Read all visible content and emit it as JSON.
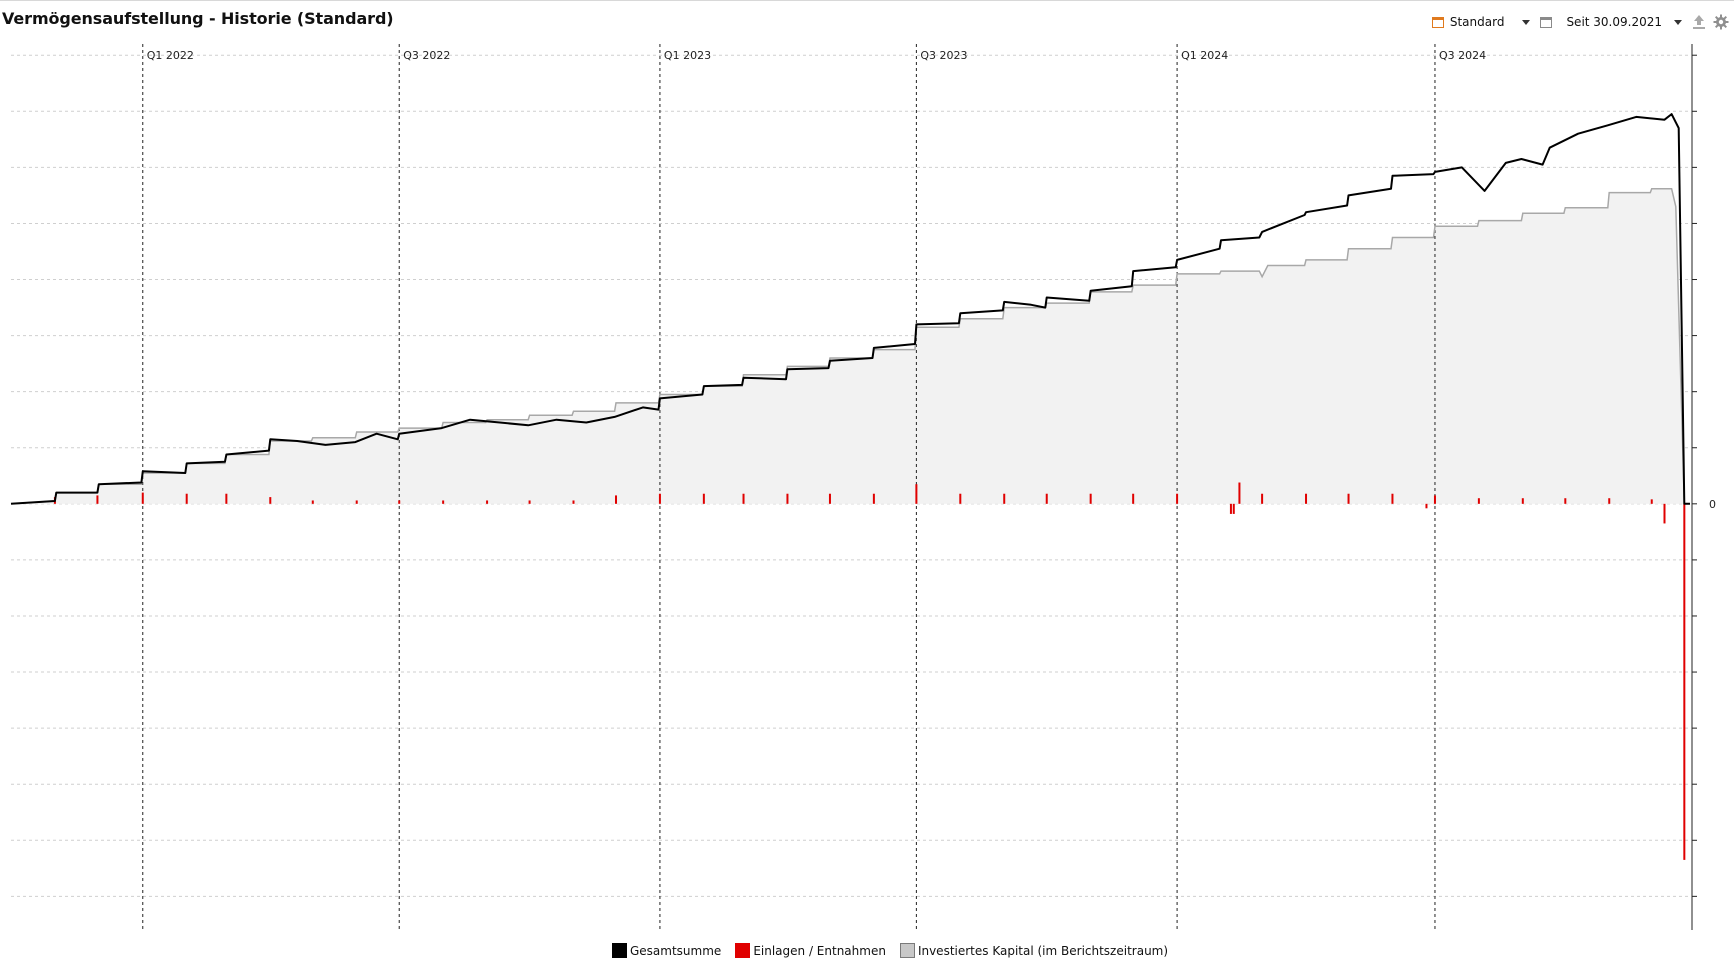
{
  "window": {
    "title": "Vermögensaufstellung - Historie (Standard)"
  },
  "toolbar": {
    "filter_label": "Standard",
    "filter_icon": "calendar-orange-icon",
    "period_label": "Seit 30.09.2021",
    "period_icon": "calendar-gray-icon",
    "export_icon": "upload-icon",
    "settings_icon": "gear-icon"
  },
  "colors": {
    "total": "#000000",
    "deposits": "#e00000",
    "invested_line": "#a8a8a8",
    "invested_fill": "#f2f2f2",
    "grid": "#cfcfcf",
    "quarter_line": "#222222"
  },
  "legend": [
    {
      "label": "Gesamtsumme",
      "color": "#000000"
    },
    {
      "label": "Einlagen / Entnahmen",
      "color": "#e00000"
    },
    {
      "label": "Investiertes Kapital (im Berichtszeitraum)",
      "color": "#c8c8c8"
    }
  ],
  "chart_data": {
    "type": "line",
    "title": "",
    "x_range": [
      "2021-09-30",
      "2024-12-28"
    ],
    "x_tick_labels": [
      {
        "date": "2022-01-01",
        "label": "Q1 2022"
      },
      {
        "date": "2022-07-01",
        "label": "Q3 2022"
      },
      {
        "date": "2023-01-01",
        "label": "Q1 2023"
      },
      {
        "date": "2023-07-01",
        "label": "Q3 2023"
      },
      {
        "date": "2024-01-01",
        "label": "Q1 2024"
      },
      {
        "date": "2024-07-01",
        "label": "Q3 2024"
      }
    ],
    "y_axis": {
      "position": "right",
      "ylim": [
        -7.6,
        8.2
      ],
      "tick_step": 1,
      "labeled_ticks": [
        {
          "value": 0,
          "label": "0"
        }
      ]
    },
    "grid": true,
    "series": [
      {
        "name": "Gesamtsumme",
        "type": "line",
        "points": [
          [
            "2021-09-30",
            0.0
          ],
          [
            "2021-10-31",
            0.05
          ],
          [
            "2021-11-01",
            0.2
          ],
          [
            "2021-11-30",
            0.2
          ],
          [
            "2021-12-01",
            0.35
          ],
          [
            "2021-12-31",
            0.38
          ],
          [
            "2022-01-01",
            0.58
          ],
          [
            "2022-01-31",
            0.55
          ],
          [
            "2022-02-01",
            0.72
          ],
          [
            "2022-02-28",
            0.75
          ],
          [
            "2022-03-01",
            0.88
          ],
          [
            "2022-03-31",
            0.95
          ],
          [
            "2022-04-01",
            1.15
          ],
          [
            "2022-04-20",
            1.12
          ],
          [
            "2022-05-10",
            1.05
          ],
          [
            "2022-05-31",
            1.1
          ],
          [
            "2022-06-15",
            1.25
          ],
          [
            "2022-06-30",
            1.15
          ],
          [
            "2022-07-01",
            1.25
          ],
          [
            "2022-07-31",
            1.35
          ],
          [
            "2022-08-20",
            1.5
          ],
          [
            "2022-09-10",
            1.45
          ],
          [
            "2022-09-30",
            1.4
          ],
          [
            "2022-10-20",
            1.5
          ],
          [
            "2022-11-10",
            1.45
          ],
          [
            "2022-11-30",
            1.55
          ],
          [
            "2022-12-20",
            1.72
          ],
          [
            "2022-12-31",
            1.68
          ],
          [
            "2023-01-01",
            1.88
          ],
          [
            "2023-01-31",
            1.95
          ],
          [
            "2023-02-01",
            2.1
          ],
          [
            "2023-02-28",
            2.12
          ],
          [
            "2023-03-01",
            2.25
          ],
          [
            "2023-03-31",
            2.22
          ],
          [
            "2023-04-01",
            2.4
          ],
          [
            "2023-04-30",
            2.42
          ],
          [
            "2023-05-01",
            2.55
          ],
          [
            "2023-05-31",
            2.6
          ],
          [
            "2023-06-01",
            2.78
          ],
          [
            "2023-06-30",
            2.85
          ],
          [
            "2023-07-01",
            3.2
          ],
          [
            "2023-07-31",
            3.22
          ],
          [
            "2023-08-01",
            3.4
          ],
          [
            "2023-08-31",
            3.45
          ],
          [
            "2023-09-01",
            3.6
          ],
          [
            "2023-09-20",
            3.55
          ],
          [
            "2023-09-30",
            3.5
          ],
          [
            "2023-10-01",
            3.68
          ],
          [
            "2023-10-31",
            3.62
          ],
          [
            "2023-11-01",
            3.8
          ],
          [
            "2023-11-30",
            3.88
          ],
          [
            "2023-12-01",
            4.15
          ],
          [
            "2023-12-31",
            4.22
          ],
          [
            "2024-01-01",
            4.35
          ],
          [
            "2024-01-31",
            4.55
          ],
          [
            "2024-02-01",
            4.7
          ],
          [
            "2024-02-28",
            4.75
          ],
          [
            "2024-03-01",
            4.85
          ],
          [
            "2024-03-31",
            5.15
          ],
          [
            "2024-04-01",
            5.2
          ],
          [
            "2024-04-30",
            5.32
          ],
          [
            "2024-05-01",
            5.5
          ],
          [
            "2024-05-31",
            5.62
          ],
          [
            "2024-06-01",
            5.85
          ],
          [
            "2024-06-30",
            5.88
          ],
          [
            "2024-07-01",
            5.92
          ],
          [
            "2024-07-20",
            6.0
          ],
          [
            "2024-08-05",
            5.58
          ],
          [
            "2024-08-20",
            6.08
          ],
          [
            "2024-08-31",
            6.15
          ],
          [
            "2024-09-15",
            6.05
          ],
          [
            "2024-09-20",
            6.35
          ],
          [
            "2024-10-10",
            6.6
          ],
          [
            "2024-10-31",
            6.75
          ],
          [
            "2024-11-20",
            6.9
          ],
          [
            "2024-12-10",
            6.85
          ],
          [
            "2024-12-15",
            6.95
          ],
          [
            "2024-12-20",
            6.7
          ],
          [
            "2024-12-24",
            0.0
          ],
          [
            "2024-12-28",
            0.0
          ]
        ]
      },
      {
        "name": "Investiertes Kapital (im Berichtszeitraum)",
        "type": "area",
        "points": [
          [
            "2021-09-30",
            0.0
          ],
          [
            "2021-10-31",
            0.05
          ],
          [
            "2021-11-01",
            0.2
          ],
          [
            "2021-11-30",
            0.2
          ],
          [
            "2021-12-01",
            0.35
          ],
          [
            "2021-12-31",
            0.35
          ],
          [
            "2022-01-01",
            0.55
          ],
          [
            "2022-01-31",
            0.55
          ],
          [
            "2022-02-01",
            0.72
          ],
          [
            "2022-02-28",
            0.72
          ],
          [
            "2022-03-01",
            0.88
          ],
          [
            "2022-03-31",
            0.88
          ],
          [
            "2022-04-01",
            1.12
          ],
          [
            "2022-04-30",
            1.12
          ],
          [
            "2022-05-01",
            1.18
          ],
          [
            "2022-05-31",
            1.18
          ],
          [
            "2022-06-01",
            1.28
          ],
          [
            "2022-06-30",
            1.28
          ],
          [
            "2022-07-01",
            1.35
          ],
          [
            "2022-07-31",
            1.35
          ],
          [
            "2022-08-01",
            1.45
          ],
          [
            "2022-08-31",
            1.45
          ],
          [
            "2022-09-01",
            1.5
          ],
          [
            "2022-09-30",
            1.5
          ],
          [
            "2022-10-01",
            1.58
          ],
          [
            "2022-10-31",
            1.58
          ],
          [
            "2022-11-01",
            1.65
          ],
          [
            "2022-11-30",
            1.65
          ],
          [
            "2022-12-01",
            1.8
          ],
          [
            "2022-12-31",
            1.8
          ],
          [
            "2023-01-01",
            1.95
          ],
          [
            "2023-01-31",
            1.95
          ],
          [
            "2023-02-01",
            2.1
          ],
          [
            "2023-02-28",
            2.1
          ],
          [
            "2023-03-01",
            2.3
          ],
          [
            "2023-03-31",
            2.3
          ],
          [
            "2023-04-01",
            2.45
          ],
          [
            "2023-04-30",
            2.45
          ],
          [
            "2023-05-01",
            2.6
          ],
          [
            "2023-05-31",
            2.6
          ],
          [
            "2023-06-01",
            2.75
          ],
          [
            "2023-06-30",
            2.75
          ],
          [
            "2023-07-01",
            3.15
          ],
          [
            "2023-07-31",
            3.15
          ],
          [
            "2023-08-01",
            3.3
          ],
          [
            "2023-08-31",
            3.3
          ],
          [
            "2023-09-01",
            3.5
          ],
          [
            "2023-09-30",
            3.5
          ],
          [
            "2023-10-01",
            3.58
          ],
          [
            "2023-10-31",
            3.58
          ],
          [
            "2023-11-01",
            3.78
          ],
          [
            "2023-11-30",
            3.78
          ],
          [
            "2023-12-01",
            3.9
          ],
          [
            "2023-12-31",
            3.9
          ],
          [
            "2024-01-01",
            4.1
          ],
          [
            "2024-01-31",
            4.1
          ],
          [
            "2024-02-01",
            4.15
          ],
          [
            "2024-02-28",
            4.15
          ],
          [
            "2024-03-01",
            4.05
          ],
          [
            "2024-03-05",
            4.25
          ],
          [
            "2024-03-31",
            4.25
          ],
          [
            "2024-04-01",
            4.35
          ],
          [
            "2024-04-30",
            4.35
          ],
          [
            "2024-05-01",
            4.55
          ],
          [
            "2024-05-31",
            4.55
          ],
          [
            "2024-06-01",
            4.75
          ],
          [
            "2024-06-30",
            4.75
          ],
          [
            "2024-07-01",
            4.95
          ],
          [
            "2024-07-31",
            4.95
          ],
          [
            "2024-08-01",
            5.05
          ],
          [
            "2024-08-31",
            5.05
          ],
          [
            "2024-09-01",
            5.18
          ],
          [
            "2024-09-30",
            5.18
          ],
          [
            "2024-10-01",
            5.28
          ],
          [
            "2024-10-31",
            5.28
          ],
          [
            "2024-11-01",
            5.55
          ],
          [
            "2024-11-30",
            5.55
          ],
          [
            "2024-12-01",
            5.62
          ],
          [
            "2024-12-15",
            5.62
          ],
          [
            "2024-12-18",
            5.3
          ],
          [
            "2024-12-24",
            0.0
          ],
          [
            "2024-12-28",
            0.0
          ]
        ]
      },
      {
        "name": "Einlagen / Entnahmen",
        "type": "bar",
        "points": [
          [
            "2021-10-31",
            0.12
          ],
          [
            "2021-11-30",
            0.15
          ],
          [
            "2022-01-01",
            0.2
          ],
          [
            "2022-02-01",
            0.18
          ],
          [
            "2022-03-01",
            0.18
          ],
          [
            "2022-04-01",
            0.12
          ],
          [
            "2022-05-01",
            0.06
          ],
          [
            "2022-06-01",
            0.06
          ],
          [
            "2022-07-01",
            0.06
          ],
          [
            "2022-08-01",
            0.06
          ],
          [
            "2022-09-01",
            0.06
          ],
          [
            "2022-10-01",
            0.06
          ],
          [
            "2022-11-01",
            0.06
          ],
          [
            "2022-12-01",
            0.15
          ],
          [
            "2023-01-01",
            0.18
          ],
          [
            "2023-02-01",
            0.18
          ],
          [
            "2023-03-01",
            0.18
          ],
          [
            "2023-04-01",
            0.18
          ],
          [
            "2023-05-01",
            0.18
          ],
          [
            "2023-06-01",
            0.18
          ],
          [
            "2023-07-01",
            0.35
          ],
          [
            "2023-08-01",
            0.18
          ],
          [
            "2023-09-01",
            0.18
          ],
          [
            "2023-10-01",
            0.18
          ],
          [
            "2023-11-01",
            0.18
          ],
          [
            "2023-12-01",
            0.18
          ],
          [
            "2024-01-01",
            0.18
          ],
          [
            "2024-02-08",
            -0.18
          ],
          [
            "2024-02-10",
            -0.18
          ],
          [
            "2024-02-14",
            0.38
          ],
          [
            "2024-03-01",
            0.18
          ],
          [
            "2024-04-01",
            0.18
          ],
          [
            "2024-05-01",
            0.18
          ],
          [
            "2024-06-01",
            0.18
          ],
          [
            "2024-06-25",
            -0.08
          ],
          [
            "2024-07-01",
            0.15
          ],
          [
            "2024-08-01",
            0.1
          ],
          [
            "2024-09-01",
            0.1
          ],
          [
            "2024-10-01",
            0.1
          ],
          [
            "2024-11-01",
            0.1
          ],
          [
            "2024-12-01",
            0.08
          ],
          [
            "2024-12-10",
            -0.35
          ],
          [
            "2024-12-24",
            -6.35
          ]
        ]
      }
    ]
  }
}
